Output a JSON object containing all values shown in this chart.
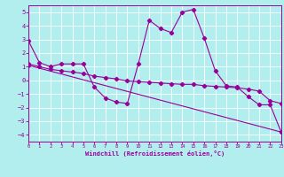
{
  "xlabel": "Windchill (Refroidissement éolien,°C)",
  "xlim": [
    0,
    23
  ],
  "ylim": [
    -4.5,
    5.5
  ],
  "yticks": [
    -4,
    -3,
    -2,
    -1,
    0,
    1,
    2,
    3,
    4,
    5
  ],
  "xticks": [
    0,
    1,
    2,
    3,
    4,
    5,
    6,
    7,
    8,
    9,
    10,
    11,
    12,
    13,
    14,
    15,
    16,
    17,
    18,
    19,
    20,
    21,
    22,
    23
  ],
  "bg_color": "#b2eeee",
  "line_color": "#990099",
  "grid_color": "#aadddd",
  "line1_x": [
    0,
    1,
    2,
    3,
    4,
    5,
    6,
    7,
    8,
    9,
    10,
    11,
    12,
    13,
    14,
    15,
    16,
    17,
    18,
    19,
    20,
    21,
    22,
    23
  ],
  "line1_y": [
    2.9,
    1.3,
    1.0,
    1.2,
    1.2,
    1.2,
    -0.5,
    -1.3,
    -1.6,
    -1.7,
    1.2,
    4.4,
    3.8,
    3.5,
    5.0,
    5.2,
    3.1,
    0.7,
    -0.4,
    -0.5,
    -1.2,
    -1.8,
    -1.8,
    -3.8
  ],
  "line2_x": [
    0,
    1,
    2,
    3,
    4,
    5,
    6,
    7,
    8,
    9,
    10,
    11,
    12,
    13,
    14,
    15,
    16,
    17,
    18,
    19,
    20,
    21,
    22,
    23
  ],
  "line2_y": [
    1.2,
    1.0,
    0.8,
    0.7,
    0.6,
    0.5,
    0.3,
    0.2,
    0.1,
    -0.05,
    -0.1,
    -0.15,
    -0.2,
    -0.25,
    -0.3,
    -0.3,
    -0.4,
    -0.45,
    -0.5,
    -0.55,
    -0.65,
    -0.8,
    -1.5,
    -1.7
  ],
  "line3_x": [
    0,
    23
  ],
  "line3_y": [
    1.1,
    -3.8
  ]
}
